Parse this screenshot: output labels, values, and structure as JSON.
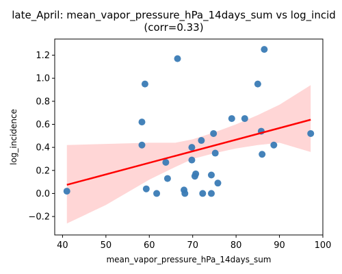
{
  "chart_data": {
    "type": "scatter",
    "title_line1": "late_April: mean_vapor_pressure_hPa_14days_sum vs log_incid",
    "title_line2": "(corr=0.33)",
    "xlabel": "mean_vapor_pressure_hPa_14days_sum",
    "ylabel": "log_incidence",
    "xlim": [
      38.2,
      100
    ],
    "ylim": [
      -0.36,
      1.34
    ],
    "xticks": [
      40,
      50,
      60,
      70,
      80,
      90,
      100
    ],
    "xtick_labels": [
      "40",
      "50",
      "60",
      "70",
      "80",
      "90",
      "100"
    ],
    "yticks": [
      -0.2,
      0.0,
      0.2,
      0.4,
      0.6,
      0.8,
      1.0,
      1.2
    ],
    "ytick_labels": [
      "−0.2",
      "0.0",
      "0.2",
      "0.4",
      "0.6",
      "0.8",
      "1.0",
      "1.2"
    ],
    "grid": false,
    "colors": {
      "points": "#3a7bb5",
      "regression_line": "#ff0000",
      "confidence_band": "#ffd6d6"
    },
    "points": [
      {
        "x": 41.0,
        "y": 0.02
      },
      {
        "x": 58.3,
        "y": 0.62
      },
      {
        "x": 58.3,
        "y": 0.42
      },
      {
        "x": 59.0,
        "y": 0.95
      },
      {
        "x": 59.3,
        "y": 0.04
      },
      {
        "x": 61.7,
        "y": 0.0
      },
      {
        "x": 63.8,
        "y": 0.27
      },
      {
        "x": 64.2,
        "y": 0.13
      },
      {
        "x": 66.5,
        "y": 1.17
      },
      {
        "x": 68.0,
        "y": 0.03
      },
      {
        "x": 68.2,
        "y": 0.0
      },
      {
        "x": 69.8,
        "y": 0.4
      },
      {
        "x": 69.8,
        "y": 0.29
      },
      {
        "x": 70.5,
        "y": 0.15
      },
      {
        "x": 70.7,
        "y": 0.17
      },
      {
        "x": 72.0,
        "y": 0.46
      },
      {
        "x": 72.3,
        "y": 0.0
      },
      {
        "x": 74.3,
        "y": 0.0
      },
      {
        "x": 74.3,
        "y": 0.16
      },
      {
        "x": 74.8,
        "y": 0.52
      },
      {
        "x": 75.2,
        "y": 0.35
      },
      {
        "x": 75.8,
        "y": 0.09
      },
      {
        "x": 79.0,
        "y": 0.65
      },
      {
        "x": 82.0,
        "y": 0.65
      },
      {
        "x": 85.0,
        "y": 0.95
      },
      {
        "x": 85.8,
        "y": 0.54
      },
      {
        "x": 86.0,
        "y": 0.34
      },
      {
        "x": 86.5,
        "y": 1.25
      },
      {
        "x": 88.7,
        "y": 0.42
      },
      {
        "x": 97.2,
        "y": 0.52
      }
    ],
    "regression": {
      "x": [
        41.0,
        97.2
      ],
      "y": [
        0.075,
        0.64
      ]
    },
    "confidence_band": {
      "x": [
        41.0,
        50.0,
        60.0,
        66.0,
        70.0,
        75.0,
        80.0,
        85.0,
        90.0,
        97.2
      ],
      "upper": [
        0.42,
        0.43,
        0.44,
        0.44,
        0.47,
        0.53,
        0.6,
        0.68,
        0.77,
        0.94
      ],
      "lower": [
        -0.26,
        -0.1,
        0.12,
        0.23,
        0.3,
        0.35,
        0.39,
        0.42,
        0.44,
        0.36
      ]
    }
  }
}
